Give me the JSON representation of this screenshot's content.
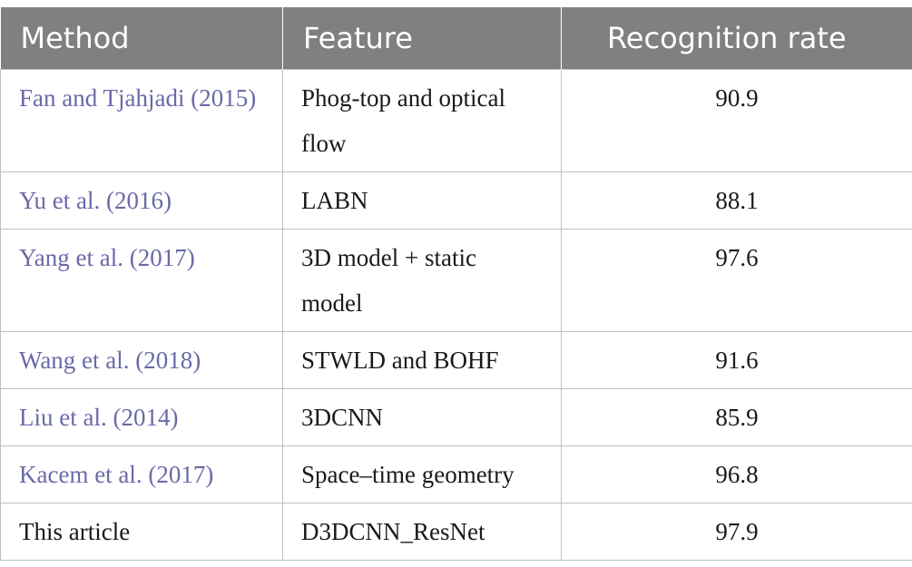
{
  "table": {
    "headers": {
      "method": "Method",
      "feature": "Feature",
      "rate": "Recognition rate"
    },
    "rows": [
      {
        "method": "Fan and Tjahjadi (2015)",
        "feature": "Phog-top and optical flow",
        "rate": "90.9",
        "is_citation": true
      },
      {
        "method": "Yu et al. (2016)",
        "feature": "LABN",
        "rate": "88.1",
        "is_citation": true
      },
      {
        "method": "Yang et al. (2017)",
        "feature": "3D model + static model",
        "rate": "97.6",
        "is_citation": true
      },
      {
        "method": "Wang et al. (2018)",
        "feature": "STWLD and BOHF",
        "rate": "91.6",
        "is_citation": true
      },
      {
        "method": "Liu et al. (2014)",
        "feature": "3DCNN",
        "rate": "85.9",
        "is_citation": true
      },
      {
        "method": "Kacem et al. (2017)",
        "feature": "Space–time geometry",
        "rate": "96.8",
        "is_citation": true
      },
      {
        "method": "This article",
        "feature": "D3DCNN_ResNet",
        "rate": "97.9",
        "is_citation": false
      }
    ]
  },
  "colors": {
    "header_bg": "#808080",
    "header_text": "#ffffff",
    "citation_link": "#6a6aa8",
    "body_text": "#1a1a1a",
    "grid_line": "#bfbfbf"
  }
}
